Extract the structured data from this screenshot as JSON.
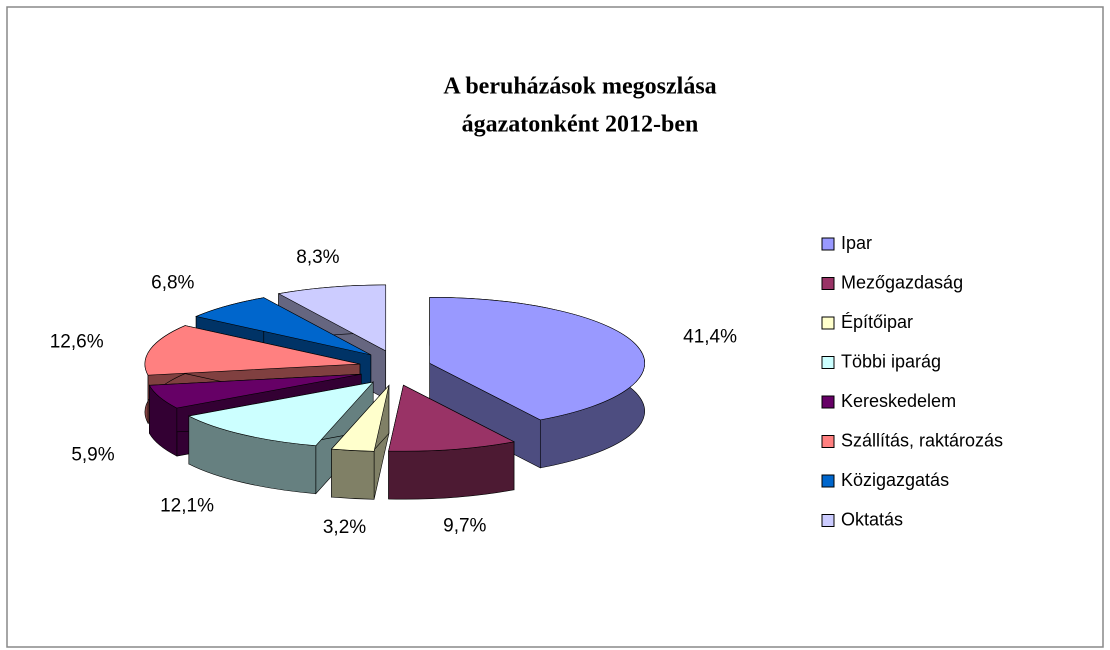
{
  "chart_data": {
    "type": "pie3d",
    "title": [
      "A beruházások megoszlása",
      "ágazatonként 2012-ben"
    ],
    "categories": [
      "Ipar",
      "Mezőgazdaság",
      "Építőipar",
      "Többi iparág",
      "Kereskedelem",
      "Szállítás, raktározás",
      "Közigazgatás",
      "Oktatás"
    ],
    "values": [
      41.4,
      9.7,
      3.2,
      12.1,
      5.9,
      12.6,
      6.8,
      8.3
    ],
    "value_labels": [
      "41,4%",
      "9,7%",
      "3,2%",
      "12,1%",
      "5,9%",
      "12,6%",
      "6,8%",
      "8,3%"
    ],
    "colors": [
      "#9999ff",
      "#993366",
      "#ffffcc",
      "#ccffff",
      "#660066",
      "#ff8080",
      "#0066cc",
      "#ccccff"
    ],
    "legend": "right"
  }
}
